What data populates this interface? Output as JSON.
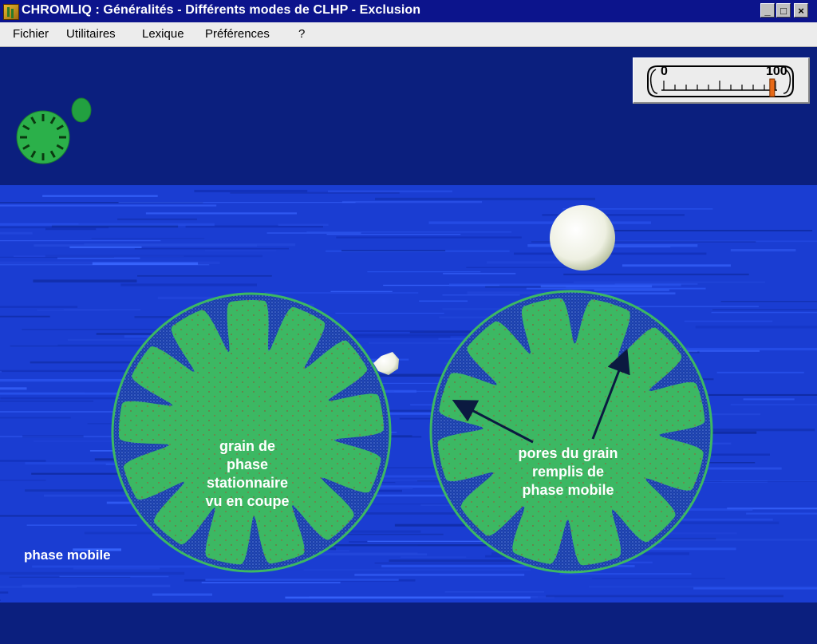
{
  "window": {
    "title": "CHROMLIQ : Généralités - Différents modes de CLHP - Exclusion",
    "controls": {
      "minimize": "_",
      "maximize": "□",
      "close": "×"
    }
  },
  "menubar": {
    "items": [
      {
        "label": "Fichier"
      },
      {
        "label": "Utilitaires"
      },
      {
        "label": "Lexique"
      },
      {
        "label": "Préférences"
      },
      {
        "label": "?"
      }
    ]
  },
  "gauge": {
    "min_label": "0",
    "max_label": "100",
    "level_fraction": 0.97,
    "indicator_color": "#e86a18"
  },
  "thumbnail": {
    "dial_color": "#2bb04a",
    "bubble_color": "#22a040"
  },
  "scene": {
    "grain_color": "#3cb863",
    "pore_color": "#1b3fa8",
    "left_grain_label": "grain de\nphase\nstationnaire\nvu en coupe",
    "right_grain_label": "pores du grain\nremplis de\nphase mobile",
    "mobile_phase_caption": "phase mobile",
    "solute_color": "#f2f4ea"
  }
}
